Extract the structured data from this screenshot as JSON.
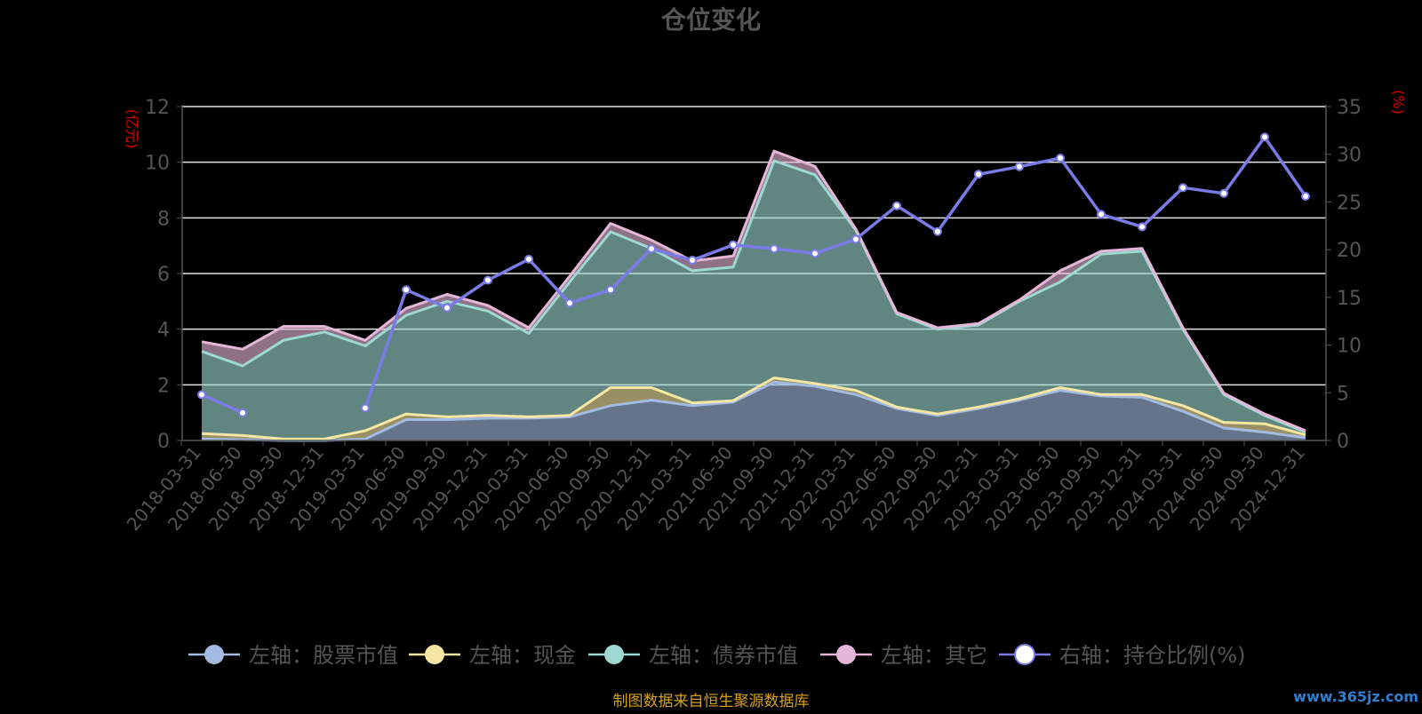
{
  "chart_data": {
    "type": "area",
    "title": "仓位变化",
    "left_axis_unit": "(亿元)",
    "right_axis_unit": "(%)",
    "y_left": {
      "min": 0,
      "max": 12,
      "ticks": [
        "0",
        "2",
        "4",
        "6",
        "8",
        "10",
        "12"
      ]
    },
    "y_right": {
      "min": 0,
      "max": 35,
      "ticks": [
        "0",
        "5",
        "10",
        "15",
        "20",
        "25",
        "30",
        "35"
      ]
    },
    "grid": true,
    "legend_position": "bottom",
    "categories": [
      "2018-03-31",
      "2018-06-30",
      "2018-09-30",
      "2018-12-31",
      "2019-03-31",
      "2019-06-30",
      "2019-09-30",
      "2019-12-31",
      "2020-03-31",
      "2020-06-30",
      "2020-09-30",
      "2020-12-31",
      "2021-03-31",
      "2021-06-30",
      "2021-09-30",
      "2021-12-31",
      "2022-03-31",
      "2022-06-30",
      "2022-09-30",
      "2022-12-31",
      "2023-03-31",
      "2023-06-30",
      "2023-09-30",
      "2023-12-31",
      "2024-03-31",
      "2024-06-30",
      "2024-09-30",
      "2024-12-31"
    ],
    "series": [
      {
        "name": "左轴：股票市值",
        "axis": "left",
        "color": "#a3bbe0",
        "values": [
          0.05,
          0.03,
          0,
          0,
          0.05,
          0.75,
          0.75,
          0.8,
          0.8,
          0.85,
          1.25,
          1.45,
          1.25,
          1.38,
          2.1,
          1.95,
          1.65,
          1.15,
          0.9,
          1.15,
          1.45,
          1.8,
          1.6,
          1.55,
          1.05,
          0.45,
          0.3,
          0.1
        ]
      },
      {
        "name": "左轴：现金",
        "axis": "left",
        "color": "#f5e6a3",
        "values": [
          0.2,
          0.15,
          0.05,
          0.05,
          0.3,
          0.2,
          0.1,
          0.1,
          0.05,
          0.05,
          0.65,
          0.45,
          0.1,
          0.05,
          0.15,
          0.1,
          0.15,
          0.05,
          0.05,
          0.05,
          0.05,
          0.1,
          0.05,
          0.1,
          0.2,
          0.2,
          0.3,
          0.1
        ]
      },
      {
        "name": "左轴：债券市值",
        "axis": "left",
        "color": "#9dd9d2",
        "values": [
          2.95,
          2.5,
          3.55,
          3.85,
          3.05,
          3.55,
          4.15,
          3.75,
          3.0,
          4.8,
          5.6,
          5.0,
          4.75,
          4.8,
          7.8,
          7.5,
          5.75,
          3.35,
          3.05,
          2.95,
          3.5,
          3.8,
          5.05,
          5.15,
          2.75,
          1.0,
          0.3,
          0.1
        ]
      },
      {
        "name": "左轴：其它",
        "axis": "left",
        "color": "#e5b6d8",
        "values": [
          0.35,
          0.6,
          0.5,
          0.2,
          0.2,
          0.25,
          0.25,
          0.2,
          0.2,
          0.2,
          0.3,
          0.3,
          0.35,
          0.4,
          0.35,
          0.3,
          0.05,
          0.05,
          0.05,
          0.05,
          0.05,
          0.4,
          0.1,
          0.1,
          0.05,
          0.05,
          0.05,
          0.05
        ]
      },
      {
        "name": "右轴：持仓比例(%)",
        "axis": "right",
        "color": "#7b7be8",
        "values": [
          4.8,
          2.9,
          null,
          null,
          3.4,
          15.8,
          13.9,
          16.8,
          19.0,
          14.4,
          15.8,
          20.1,
          18.9,
          20.5,
          20.1,
          19.6,
          21.1,
          24.6,
          21.9,
          27.9,
          28.7,
          29.6,
          23.7,
          22.4,
          26.5,
          25.9,
          31.8,
          25.6
        ]
      }
    ]
  },
  "footer": {
    "source": "制图数据来自恒生聚源数据库",
    "watermark": "www.365jz.com"
  }
}
